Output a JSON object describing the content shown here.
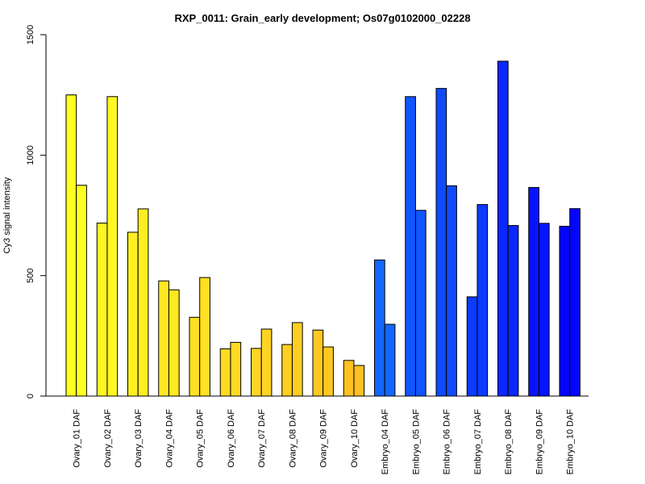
{
  "chart_data": {
    "type": "bar",
    "title": "RXP_0011: Grain_early development; Os07g0102000_02228",
    "ylabel": "Cy3 signal intensity",
    "xlabel": "",
    "ylim": [
      0,
      1500
    ],
    "yticks": [
      0,
      500,
      1000,
      1500
    ],
    "grid": false,
    "categories": [
      "Ovary_01 DAF",
      "Ovary_02 DAF",
      "Ovary_03 DAF",
      "Ovary_04 DAF",
      "Ovary_05 DAF",
      "Ovary_06 DAF",
      "Ovary_07 DAF",
      "Ovary_08 DAF",
      "Ovary_09 DAF",
      "Ovary_10 DAF",
      "Embryo_04 DAF",
      "Embryo_05 DAF",
      "Embryo_06 DAF",
      "Embryo_07 DAF",
      "Embryo_08 DAF",
      "Embryo_09 DAF",
      "Embryo_10 DAF"
    ],
    "colors": [
      "#FFFF22",
      "#FFF722",
      "#FFEE22",
      "#FFE822",
      "#FFE022",
      "#FFDA22",
      "#FFD422",
      "#FFCE22",
      "#FFC822",
      "#FFC022",
      "#1466FF",
      "#1155FF",
      "#0F4AFF",
      "#0C3AFF",
      "#0A28FF",
      "#0814FF",
      "#0505FF"
    ],
    "series": [
      {
        "values": [
          1250,
          718,
          680,
          478,
          327,
          196,
          198,
          214,
          274,
          148,
          565,
          1243,
          1277,
          412,
          1390,
          866,
          705
        ]
      },
      {
        "values": [
          875,
          1243,
          777,
          441,
          492,
          223,
          278,
          305,
          204,
          127,
          298,
          771,
          873,
          795,
          708,
          717,
          778
        ]
      }
    ]
  }
}
